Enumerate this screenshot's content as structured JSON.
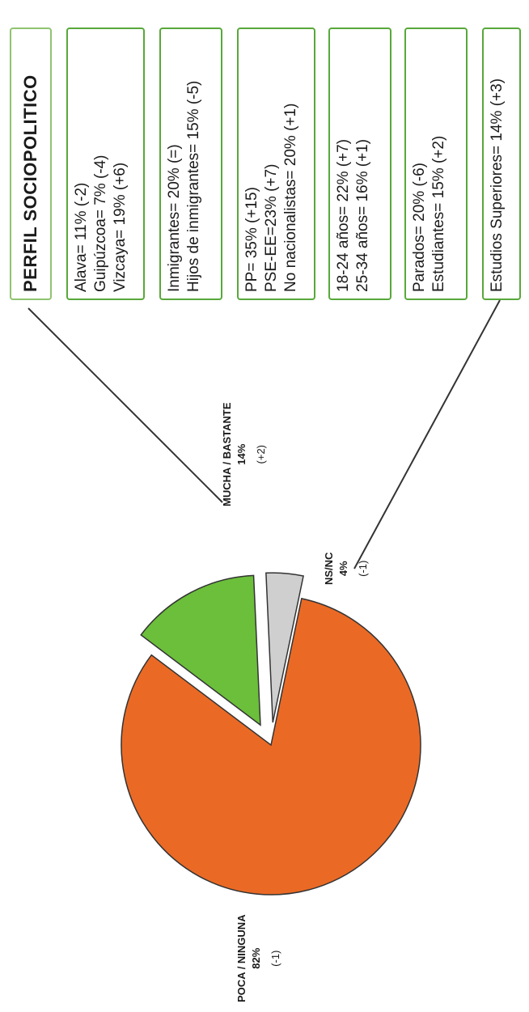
{
  "chart_data": {
    "type": "pie",
    "slices": [
      {
        "label": "MUCHA / BASTANTE",
        "value": 14,
        "value_label": "14%",
        "change": "(+2)",
        "color": "#6bbf3a",
        "exploded": true
      },
      {
        "label": "NS/NC",
        "value": 4,
        "value_label": "4%",
        "change": "(-1)",
        "color": "#cfcfcf",
        "exploded": true
      },
      {
        "label": "POCA / NINGUNA",
        "value": 82,
        "value_label": "82%",
        "change": "(-1)",
        "color": "#ea6a25",
        "exploded": false
      }
    ]
  },
  "profile": {
    "title": "PERFIL SOCIOPOLITICO",
    "boxes": [
      {
        "lines": [
          "Alava= 11% (-2)",
          "Guipúzcoa= 7% (-4)",
          "Vizcaya= 19% (+6)"
        ]
      },
      {
        "lines": [
          "Inmigrantes= 20% (=)",
          "Hijos de inmigrantes= 15% (-5)"
        ]
      },
      {
        "lines": [
          "PP= 35% (+15)",
          "PSE-EE=23% (+7)",
          "No nacionalistas= 20% (+1)"
        ]
      },
      {
        "lines": [
          "18-24 años= 22% (+7)",
          "25-34 años= 16% (+1)"
        ]
      },
      {
        "lines": [
          "Parados= 20% (-6)",
          "Estudiantes= 15% (+2)"
        ]
      },
      {
        "lines": [
          "Estudios Superiores= 14% (+3)"
        ]
      }
    ]
  },
  "colors": {
    "box_border": "#58a83a",
    "title_border": "#8fc46f",
    "outline": "#333333"
  }
}
